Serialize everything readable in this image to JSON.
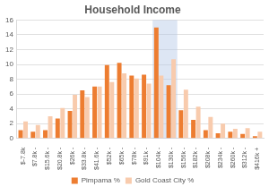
{
  "chart_data": {
    "type": "bar",
    "title": "Household Income",
    "categories": [
      "$-7.8k",
      "$7.8k -",
      "$15.6k -",
      "$20.8k -",
      "$26k -",
      "$33.8k -",
      "$41.6k -",
      "$52k -",
      "$65k -",
      "$78k -",
      "$91k -",
      "$104k -",
      "$130k -",
      "$156k -",
      "$182k -",
      "$208k -",
      "$234k -",
      "$260k -",
      "$312k -",
      "$416k +"
    ],
    "series": [
      {
        "name": "Pimpama %",
        "color": "#ed7d31",
        "values": [
          1.1,
          0.9,
          1.1,
          2.7,
          3.7,
          6.5,
          7.0,
          9.9,
          10.2,
          8.5,
          8.6,
          15.0,
          7.2,
          3.8,
          2.5,
          1.1,
          0.7,
          0.9,
          0.6,
          0.3
        ]
      },
      {
        "name": "Gold Coast City %",
        "color": "#f8cbad",
        "values": [
          2.3,
          1.8,
          3.0,
          4.1,
          5.9,
          5.6,
          7.0,
          7.6,
          8.8,
          8.1,
          7.4,
          8.5,
          10.7,
          6.6,
          4.3,
          2.9,
          2.0,
          1.3,
          1.4,
          0.9
        ]
      }
    ],
    "ylim": [
      0,
      16
    ],
    "yticks": [
      0,
      2,
      4,
      6,
      8,
      10,
      12,
      14,
      16
    ],
    "grid": true,
    "legend": "bottom"
  }
}
